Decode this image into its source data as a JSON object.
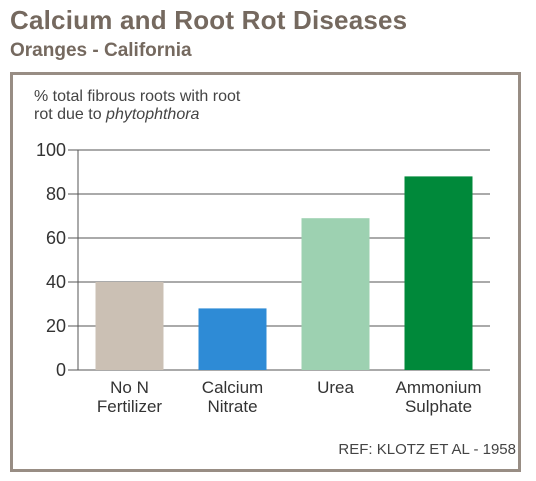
{
  "header": {
    "title": "Calcium and Root Rot Diseases",
    "subtitle": "Oranges - California"
  },
  "chart_data": {
    "type": "bar",
    "ylabel_line1": "% total fibrous roots with root",
    "ylabel_line2_prefix": "rot due to ",
    "ylabel_line2_italic": "phytophthora",
    "ylim": [
      0,
      100
    ],
    "yticks": [
      0,
      20,
      40,
      60,
      80,
      100
    ],
    "grid": true,
    "categories": [
      [
        "No N",
        "Fertilizer"
      ],
      [
        "Calcium",
        "Nitrate"
      ],
      [
        "Urea"
      ],
      [
        "Ammonium",
        "Sulphate"
      ]
    ],
    "values": [
      40,
      28,
      69,
      88
    ],
    "colors": [
      "#cbc0b4",
      "#2e8bd6",
      "#9dd1b1",
      "#00893a"
    ]
  },
  "footer": {
    "reference": "REF: KLOTZ ET AL - 1958"
  }
}
